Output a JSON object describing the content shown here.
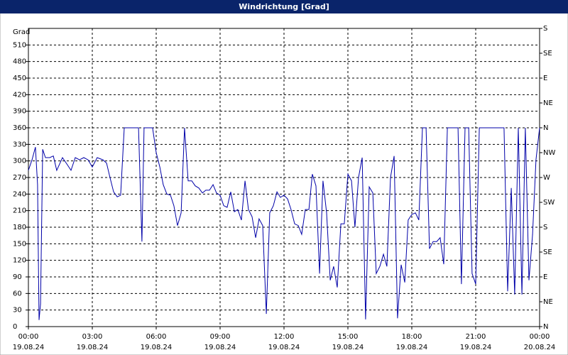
{
  "chart_data": {
    "type": "line",
    "title": "Windrichtung [Grad]",
    "y_label": "Grad",
    "x": [
      0,
      0.17,
      0.33,
      0.43,
      0.5,
      0.57,
      0.67,
      0.8,
      1,
      1.17,
      1.33,
      1.6,
      1.83,
      2,
      2.2,
      2.4,
      2.6,
      2.8,
      3,
      3.23,
      3.5,
      3.67,
      3.83,
      4,
      4.17,
      4.33,
      4.5,
      5.17,
      5.33,
      5.43,
      5.83,
      6,
      6.17,
      6.33,
      6.5,
      6.67,
      6.83,
      7,
      7.17,
      7.33,
      7.5,
      7.67,
      7.83,
      8,
      8.17,
      8.33,
      8.5,
      8.67,
      8.83,
      9,
      9.17,
      9.33,
      9.5,
      9.67,
      9.83,
      10,
      10.17,
      10.33,
      10.5,
      10.67,
      10.83,
      11,
      11.17,
      11.33,
      11.5,
      11.67,
      11.83,
      12,
      12.17,
      12.33,
      12.5,
      12.67,
      12.83,
      13,
      13.17,
      13.33,
      13.5,
      13.67,
      13.83,
      14,
      14.17,
      14.33,
      14.5,
      14.67,
      14.83,
      15,
      15.17,
      15.33,
      15.5,
      15.67,
      15.83,
      16,
      16.17,
      16.33,
      16.5,
      16.67,
      16.83,
      17,
      17.17,
      17.33,
      17.5,
      17.67,
      17.83,
      18,
      18.17,
      18.33,
      18.5,
      18.67,
      18.83,
      19,
      19.17,
      19.33,
      19.5,
      19.67,
      20.17,
      20.33,
      20.5,
      20.67,
      20.83,
      21,
      21.17,
      22.33,
      22.5,
      22.67,
      22.83,
      23,
      23.17,
      23.33,
      23.5,
      23.67,
      23.83,
      24
    ],
    "series": [
      {
        "name": "Windrichtung",
        "color": "#0000a8",
        "values": [
          283,
          302,
          325,
          257,
          12,
          41,
          321,
          306,
          306,
          309,
          283,
          306,
          293,
          283,
          306,
          302,
          306,
          302,
          289,
          306,
          302,
          296,
          270,
          244,
          235,
          238,
          360,
          360,
          154,
          360,
          360,
          315,
          289,
          257,
          240,
          238,
          219,
          183,
          206,
          360,
          264,
          264,
          255,
          251,
          242,
          247,
          247,
          257,
          242,
          238,
          219,
          216,
          244,
          208,
          212,
          193,
          264,
          212,
          199,
          161,
          195,
          183,
          23,
          206,
          219,
          244,
          234,
          238,
          231,
          212,
          186,
          183,
          167,
          212,
          212,
          276,
          255,
          96,
          264,
          206,
          84,
          109,
          71,
          186,
          186,
          276,
          264,
          180,
          270,
          306,
          13,
          253,
          242,
          96,
          109,
          131,
          109,
          270,
          309,
          15,
          112,
          80,
          193,
          203,
          206,
          193,
          360,
          360,
          141,
          154,
          154,
          161,
          113,
          360,
          360,
          77,
          360,
          360,
          96,
          77,
          360,
          360,
          64,
          251,
          58,
          360,
          58,
          360,
          84,
          167,
          302,
          360
        ]
      }
    ],
    "xlim": [
      0,
      24
    ],
    "xticks": [
      {
        "value": 0,
        "label": "00:00",
        "date": "19.08.24"
      },
      {
        "value": 3,
        "label": "03:00",
        "date": "19.08.24"
      },
      {
        "value": 6,
        "label": "06:00",
        "date": "19.08.24"
      },
      {
        "value": 9,
        "label": "09:00",
        "date": "19.08.24"
      },
      {
        "value": 12,
        "label": "12:00",
        "date": "19.08.24"
      },
      {
        "value": 15,
        "label": "15:00",
        "date": "19.08.24"
      },
      {
        "value": 18,
        "label": "18:00",
        "date": "19.08.24"
      },
      {
        "value": 21,
        "label": "21:00",
        "date": "19.08.24"
      },
      {
        "value": 24,
        "label": "00:00",
        "date": "20.08.24"
      }
    ],
    "ylim": [
      0,
      540
    ],
    "yticks": [
      0,
      30,
      60,
      90,
      120,
      150,
      180,
      210,
      240,
      270,
      300,
      330,
      360,
      390,
      420,
      450,
      480,
      510
    ],
    "y2lim": [
      0,
      540
    ],
    "y2ticks": [
      {
        "value": 0,
        "label": "N"
      },
      {
        "value": 45,
        "label": "NE"
      },
      {
        "value": 90,
        "label": "E"
      },
      {
        "value": 135,
        "label": "SE"
      },
      {
        "value": 180,
        "label": "S"
      },
      {
        "value": 225,
        "label": "SW"
      },
      {
        "value": 270,
        "label": "W"
      },
      {
        "value": 315,
        "label": "NW"
      },
      {
        "value": 360,
        "label": "N"
      },
      {
        "value": 405,
        "label": "NE"
      },
      {
        "value": 450,
        "label": "E"
      },
      {
        "value": 495,
        "label": "SE"
      },
      {
        "value": 540,
        "label": "S"
      }
    ],
    "grid": true
  }
}
